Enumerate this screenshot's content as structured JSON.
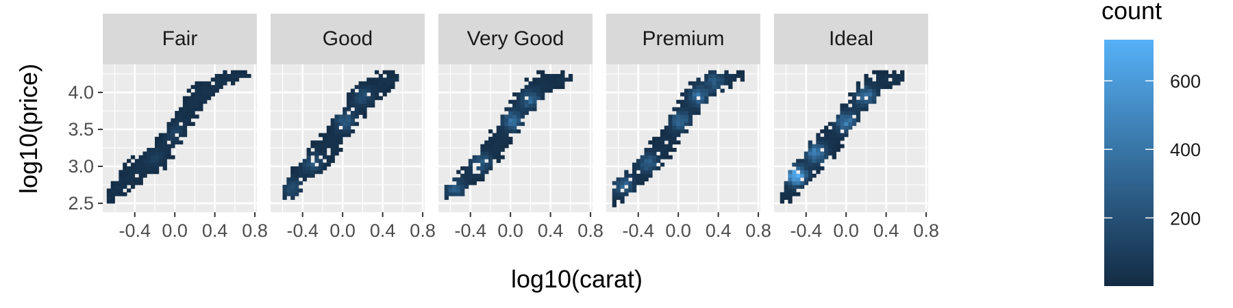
{
  "chart_data": {
    "type": "heatmap",
    "subtype": "bin2d facets",
    "xlabel": "log10(carat)",
    "ylabel": "log10(price)",
    "xlim": [
      -0.72,
      0.82
    ],
    "ylim": [
      2.38,
      4.38
    ],
    "x_ticks": [
      -0.4,
      0.0,
      0.4,
      0.8
    ],
    "x_tick_labels": [
      "-0.4",
      "0.0",
      "0.4",
      "0.8"
    ],
    "y_ticks": [
      2.5,
      3.0,
      3.5,
      4.0
    ],
    "y_tick_labels": [
      "2.5",
      "3.0",
      "3.5",
      "4.0"
    ],
    "bin_width": {
      "x": 0.04,
      "y": 0.05
    },
    "grid": true,
    "panel_background": "#EBEBEB",
    "strip_background": "#D9D9D9",
    "facets": [
      {
        "name": "Fair",
        "x_range": [
          -0.68,
          0.72
        ],
        "band": [
          [
            -0.68,
            2.49,
            2.62
          ],
          [
            -0.52,
            2.62,
            3.0
          ],
          [
            -0.32,
            2.82,
            3.22
          ],
          [
            -0.08,
            3.0,
            3.5
          ],
          [
            0.08,
            3.38,
            3.92
          ],
          [
            0.24,
            3.72,
            4.15
          ],
          [
            0.36,
            3.9,
            4.26
          ],
          [
            0.52,
            4.1,
            4.28
          ],
          [
            0.7,
            4.2,
            4.28
          ]
        ],
        "peaks": [
          [
            0.0,
            3.45,
            80
          ],
          [
            -0.2,
            3.1,
            60
          ]
        ]
      },
      {
        "name": "Good",
        "x_range": [
          -0.6,
          0.52
        ],
        "band": [
          [
            -0.6,
            2.49,
            2.75
          ],
          [
            -0.48,
            2.62,
            3.0
          ],
          [
            -0.3,
            2.82,
            3.3
          ],
          [
            -0.1,
            3.05,
            3.6
          ],
          [
            0.06,
            3.4,
            3.95
          ],
          [
            0.2,
            3.65,
            4.15
          ],
          [
            0.36,
            3.92,
            4.27
          ],
          [
            0.52,
            4.12,
            4.28
          ]
        ],
        "peaks": [
          [
            0.02,
            3.62,
            220
          ],
          [
            -0.3,
            3.05,
            180
          ],
          [
            -0.5,
            2.7,
            140
          ],
          [
            0.2,
            3.95,
            150
          ]
        ]
      },
      {
        "name": "Very Good",
        "x_range": [
          -0.66,
          0.6
        ],
        "band": [
          [
            -0.66,
            2.49,
            2.68
          ],
          [
            -0.5,
            2.58,
            2.95
          ],
          [
            -0.3,
            2.82,
            3.28
          ],
          [
            -0.1,
            3.1,
            3.62
          ],
          [
            0.06,
            3.45,
            4.0
          ],
          [
            0.2,
            3.72,
            4.22
          ],
          [
            0.36,
            3.98,
            4.28
          ],
          [
            0.6,
            4.15,
            4.28
          ]
        ],
        "peaks": [
          [
            -0.55,
            2.7,
            230
          ],
          [
            -0.3,
            3.05,
            260
          ],
          [
            0.02,
            3.62,
            330
          ],
          [
            0.2,
            3.9,
            280
          ]
        ]
      },
      {
        "name": "Premium",
        "x_range": [
          -0.66,
          0.64
        ],
        "band": [
          [
            -0.66,
            2.48,
            2.72
          ],
          [
            -0.5,
            2.58,
            2.98
          ],
          [
            -0.3,
            2.82,
            3.28
          ],
          [
            -0.1,
            3.1,
            3.62
          ],
          [
            0.06,
            3.45,
            4.02
          ],
          [
            0.22,
            3.75,
            4.25
          ],
          [
            0.38,
            4.02,
            4.28
          ],
          [
            0.64,
            4.15,
            4.28
          ]
        ],
        "peaks": [
          [
            -0.55,
            2.75,
            260
          ],
          [
            -0.3,
            3.05,
            240
          ],
          [
            0.02,
            3.62,
            300
          ],
          [
            0.2,
            3.95,
            330
          ],
          [
            0.36,
            4.15,
            220
          ]
        ]
      },
      {
        "name": "Ideal",
        "x_range": [
          -0.66,
          0.56
        ],
        "band": [
          [
            -0.66,
            2.49,
            2.6
          ],
          [
            -0.55,
            2.55,
            2.95
          ],
          [
            -0.36,
            2.82,
            3.3
          ],
          [
            -0.14,
            3.1,
            3.6
          ],
          [
            0.04,
            3.45,
            3.98
          ],
          [
            0.2,
            3.75,
            4.24
          ],
          [
            0.34,
            4.0,
            4.28
          ],
          [
            0.56,
            4.15,
            4.28
          ]
        ],
        "peaks": [
          [
            -0.5,
            2.88,
            710
          ],
          [
            -0.3,
            3.18,
            430
          ],
          [
            0.0,
            3.6,
            380
          ],
          [
            0.2,
            3.95,
            330
          ]
        ]
      }
    ],
    "legend": {
      "title": "count",
      "placement": "right",
      "range": [
        1,
        720
      ],
      "ticks": [
        200,
        400,
        600
      ],
      "tick_labels": [
        "200",
        "400",
        "600"
      ],
      "color_low": "#132B43",
      "color_high": "#56B1F7"
    }
  }
}
